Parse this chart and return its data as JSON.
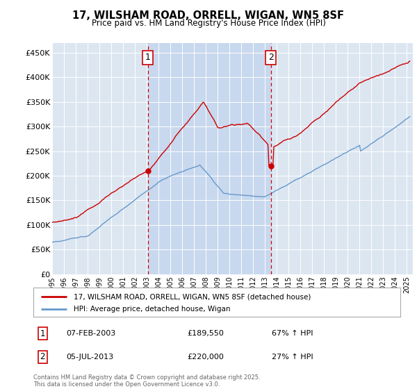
{
  "title": "17, WILSHAM ROAD, ORRELL, WIGAN, WN5 8SF",
  "subtitle": "Price paid vs. HM Land Registry's House Price Index (HPI)",
  "ylim": [
    0,
    470000
  ],
  "yticks": [
    0,
    50000,
    100000,
    150000,
    200000,
    250000,
    300000,
    350000,
    400000,
    450000
  ],
  "ytick_labels": [
    "£0",
    "£50K",
    "£100K",
    "£150K",
    "£200K",
    "£250K",
    "£300K",
    "£350K",
    "£400K",
    "£450K"
  ],
  "xstart_year": 1995,
  "xend_year": 2025,
  "transaction1_date": "07-FEB-2003",
  "transaction1_price": 189550,
  "transaction1_label": "£189,550",
  "transaction1_hpi": "67% ↑ HPI",
  "transaction1_x": 2003.1,
  "transaction2_date": "05-JUL-2013",
  "transaction2_price": 220000,
  "transaction2_label": "£220,000",
  "transaction2_hpi": "27% ↑ HPI",
  "transaction2_x": 2013.5,
  "legend_line1": "17, WILSHAM ROAD, ORRELL, WIGAN, WN5 8SF (detached house)",
  "legend_line2": "HPI: Average price, detached house, Wigan",
  "footer": "Contains HM Land Registry data © Crown copyright and database right 2025.\nThis data is licensed under the Open Government Licence v3.0.",
  "bg_color": "#dce6f1",
  "highlight_color": "#c8d8ee",
  "red_line_color": "#cc0000",
  "blue_line_color": "#6699cc",
  "annotation_box_color": "#cc0000",
  "dashed_line_color": "#cc0000",
  "dot_color": "#cc0000"
}
